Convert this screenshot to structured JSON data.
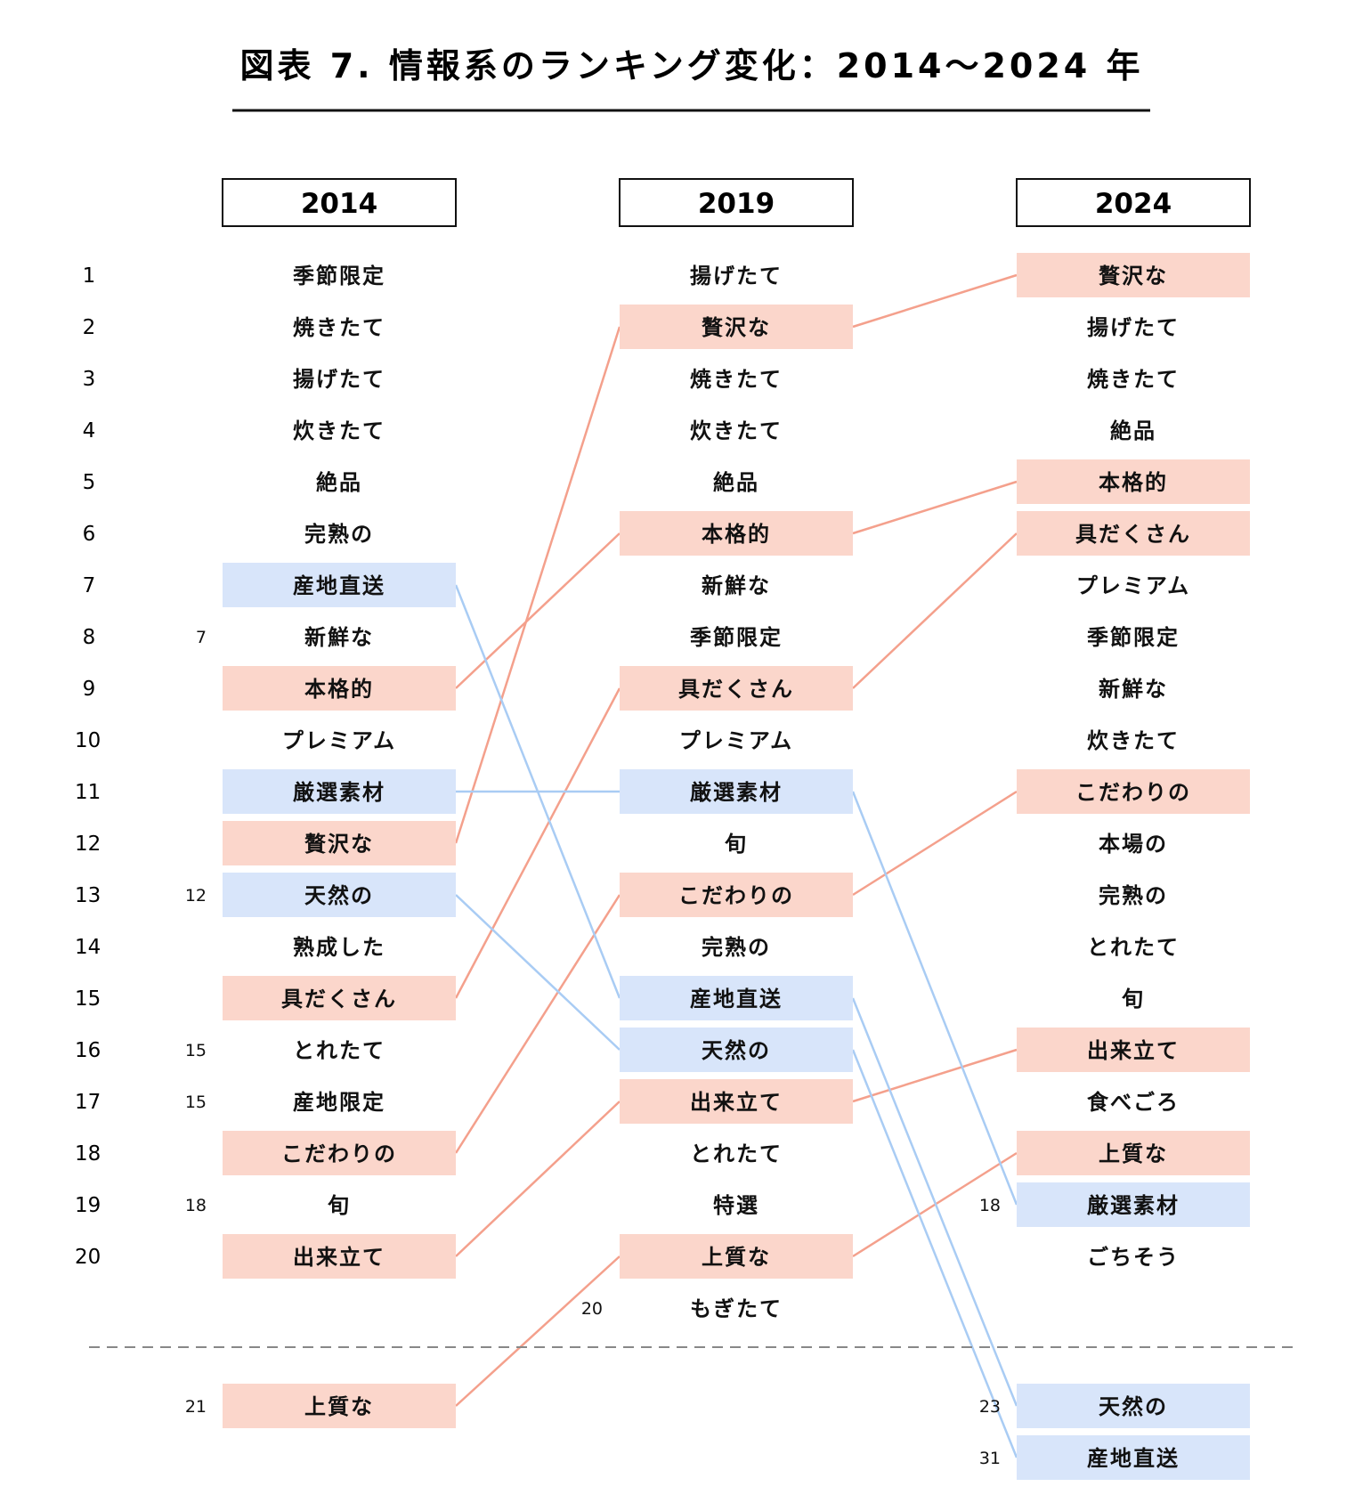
{
  "title": "図表 7. 情報系のランキング変化：2014～2024 年",
  "colors": {
    "up": "#f4a08c",
    "up_fill": "#fbd6cb",
    "down": "#a9ccf4",
    "down_fill": "#d8e5fa",
    "text": "#111111",
    "rule": "#111111",
    "divider": "#888888"
  },
  "chart_data": {
    "type": "table",
    "rank_labels": [
      "1",
      "2",
      "3",
      "4",
      "5",
      "6",
      "7",
      "8",
      "9",
      "10",
      "11",
      "12",
      "13",
      "14",
      "15",
      "16",
      "17",
      "18",
      "19",
      "20"
    ],
    "columns": [
      {
        "year": "2014",
        "items": [
          {
            "rank": 1,
            "text": "季節限定",
            "note": "",
            "hl": ""
          },
          {
            "rank": 2,
            "text": "焼きたて",
            "note": "",
            "hl": ""
          },
          {
            "rank": 3,
            "text": "揚げたて",
            "note": "",
            "hl": ""
          },
          {
            "rank": 4,
            "text": "炊きたて",
            "note": "",
            "hl": ""
          },
          {
            "rank": 5,
            "text": "絶品",
            "note": "",
            "hl": ""
          },
          {
            "rank": 6,
            "text": "完熟の",
            "note": "",
            "hl": ""
          },
          {
            "rank": 7,
            "text": "産地直送",
            "note": "",
            "hl": "down"
          },
          {
            "rank": 8,
            "text": "新鮮な",
            "note": "7",
            "hl": ""
          },
          {
            "rank": 9,
            "text": "本格的",
            "note": "",
            "hl": "up"
          },
          {
            "rank": 10,
            "text": "プレミアム",
            "note": "",
            "hl": ""
          },
          {
            "rank": 11,
            "text": "厳選素材",
            "note": "",
            "hl": "down"
          },
          {
            "rank": 12,
            "text": "贅沢な",
            "note": "",
            "hl": "up"
          },
          {
            "rank": 13,
            "text": "天然の",
            "note": "12",
            "hl": "down"
          },
          {
            "rank": 14,
            "text": "熟成した",
            "note": "",
            "hl": ""
          },
          {
            "rank": 15,
            "text": "具だくさん",
            "note": "",
            "hl": "up"
          },
          {
            "rank": 16,
            "text": "とれたて",
            "note": "15",
            "hl": ""
          },
          {
            "rank": 17,
            "text": "産地限定",
            "note": "15",
            "hl": ""
          },
          {
            "rank": 18,
            "text": "こだわりの",
            "note": "",
            "hl": "up"
          },
          {
            "rank": 19,
            "text": "旬",
            "note": "18",
            "hl": ""
          },
          {
            "rank": 20,
            "text": "出来立て",
            "note": "",
            "hl": "up"
          },
          {
            "rank": 21,
            "text": "上質な",
            "note": "21",
            "hl": "up"
          }
        ]
      },
      {
        "year": "2019",
        "items": [
          {
            "rank": 1,
            "text": "揚げたて",
            "note": "",
            "hl": ""
          },
          {
            "rank": 2,
            "text": "贅沢な",
            "note": "",
            "hl": "up"
          },
          {
            "rank": 3,
            "text": "焼きたて",
            "note": "",
            "hl": ""
          },
          {
            "rank": 4,
            "text": "炊きたて",
            "note": "",
            "hl": ""
          },
          {
            "rank": 5,
            "text": "絶品",
            "note": "",
            "hl": ""
          },
          {
            "rank": 6,
            "text": "本格的",
            "note": "",
            "hl": "up"
          },
          {
            "rank": 7,
            "text": "新鮮な",
            "note": "",
            "hl": ""
          },
          {
            "rank": 8,
            "text": "季節限定",
            "note": "",
            "hl": ""
          },
          {
            "rank": 9,
            "text": "具だくさん",
            "note": "",
            "hl": "up"
          },
          {
            "rank": 10,
            "text": "プレミアム",
            "note": "",
            "hl": ""
          },
          {
            "rank": 11,
            "text": "厳選素材",
            "note": "",
            "hl": "down"
          },
          {
            "rank": 12,
            "text": "旬",
            "note": "",
            "hl": ""
          },
          {
            "rank": 13,
            "text": "こだわりの",
            "note": "",
            "hl": "up"
          },
          {
            "rank": 14,
            "text": "完熟の",
            "note": "",
            "hl": ""
          },
          {
            "rank": 15,
            "text": "産地直送",
            "note": "",
            "hl": "down"
          },
          {
            "rank": 16,
            "text": "天然の",
            "note": "",
            "hl": "down"
          },
          {
            "rank": 17,
            "text": "出来立て",
            "note": "",
            "hl": "up"
          },
          {
            "rank": 18,
            "text": "とれたて",
            "note": "",
            "hl": ""
          },
          {
            "rank": 19,
            "text": "特選",
            "note": "",
            "hl": ""
          },
          {
            "rank": 20,
            "text": "上質な",
            "note": "",
            "hl": "up"
          },
          {
            "rank": 20,
            "text": "もぎたて",
            "note": "20",
            "hl": ""
          }
        ]
      },
      {
        "year": "2024",
        "items": [
          {
            "rank": 1,
            "text": "贅沢な",
            "note": "",
            "hl": "up"
          },
          {
            "rank": 2,
            "text": "揚げたて",
            "note": "",
            "hl": ""
          },
          {
            "rank": 3,
            "text": "焼きたて",
            "note": "",
            "hl": ""
          },
          {
            "rank": 4,
            "text": "絶品",
            "note": "",
            "hl": ""
          },
          {
            "rank": 5,
            "text": "本格的",
            "note": "",
            "hl": "up"
          },
          {
            "rank": 6,
            "text": "具だくさん",
            "note": "",
            "hl": "up"
          },
          {
            "rank": 7,
            "text": "プレミアム",
            "note": "",
            "hl": ""
          },
          {
            "rank": 8,
            "text": "季節限定",
            "note": "",
            "hl": ""
          },
          {
            "rank": 9,
            "text": "新鮮な",
            "note": "",
            "hl": ""
          },
          {
            "rank": 10,
            "text": "炊きたて",
            "note": "",
            "hl": ""
          },
          {
            "rank": 11,
            "text": "こだわりの",
            "note": "",
            "hl": "up"
          },
          {
            "rank": 12,
            "text": "本場の",
            "note": "",
            "hl": ""
          },
          {
            "rank": 13,
            "text": "完熟の",
            "note": "",
            "hl": ""
          },
          {
            "rank": 14,
            "text": "とれたて",
            "note": "",
            "hl": ""
          },
          {
            "rank": 15,
            "text": "旬",
            "note": "",
            "hl": ""
          },
          {
            "rank": 16,
            "text": "出来立て",
            "note": "",
            "hl": "up"
          },
          {
            "rank": 17,
            "text": "食べごろ",
            "note": "",
            "hl": ""
          },
          {
            "rank": 18,
            "text": "上質な",
            "note": "",
            "hl": "up"
          },
          {
            "rank": 19,
            "text": "厳選素材",
            "note": "18",
            "hl": "down"
          },
          {
            "rank": 20,
            "text": "ごちそう",
            "note": "",
            "hl": ""
          },
          {
            "rank": 23,
            "text": "天然の",
            "note": "23",
            "hl": "down"
          },
          {
            "rank": 31,
            "text": "産地直送",
            "note": "31",
            "hl": "down"
          }
        ]
      }
    ],
    "links": [
      {
        "from": [
          0,
          11
        ],
        "to": [
          1,
          1
        ],
        "kind": "up"
      },
      {
        "from": [
          0,
          8
        ],
        "to": [
          1,
          5
        ],
        "kind": "up"
      },
      {
        "from": [
          0,
          14
        ],
        "to": [
          1,
          8
        ],
        "kind": "up"
      },
      {
        "from": [
          0,
          17
        ],
        "to": [
          1,
          12
        ],
        "kind": "up"
      },
      {
        "from": [
          0,
          19
        ],
        "to": [
          1,
          16
        ],
        "kind": "up"
      },
      {
        "from": [
          0,
          20
        ],
        "to": [
          1,
          19
        ],
        "kind": "up"
      },
      {
        "from": [
          0,
          6
        ],
        "to": [
          1,
          14
        ],
        "kind": "down"
      },
      {
        "from": [
          0,
          10
        ],
        "to": [
          1,
          10
        ],
        "kind": "down"
      },
      {
        "from": [
          0,
          12
        ],
        "to": [
          1,
          15
        ],
        "kind": "down"
      },
      {
        "from": [
          1,
          1
        ],
        "to": [
          2,
          0
        ],
        "kind": "up"
      },
      {
        "from": [
          1,
          5
        ],
        "to": [
          2,
          4
        ],
        "kind": "up"
      },
      {
        "from": [
          1,
          8
        ],
        "to": [
          2,
          5
        ],
        "kind": "up"
      },
      {
        "from": [
          1,
          12
        ],
        "to": [
          2,
          10
        ],
        "kind": "up"
      },
      {
        "from": [
          1,
          16
        ],
        "to": [
          2,
          15
        ],
        "kind": "up"
      },
      {
        "from": [
          1,
          19
        ],
        "to": [
          2,
          17
        ],
        "kind": "up"
      },
      {
        "from": [
          1,
          10
        ],
        "to": [
          2,
          18
        ],
        "kind": "down"
      },
      {
        "from": [
          1,
          14
        ],
        "to": [
          2,
          20
        ],
        "kind": "down"
      },
      {
        "from": [
          1,
          15
        ],
        "to": [
          2,
          21
        ],
        "kind": "down"
      }
    ]
  }
}
